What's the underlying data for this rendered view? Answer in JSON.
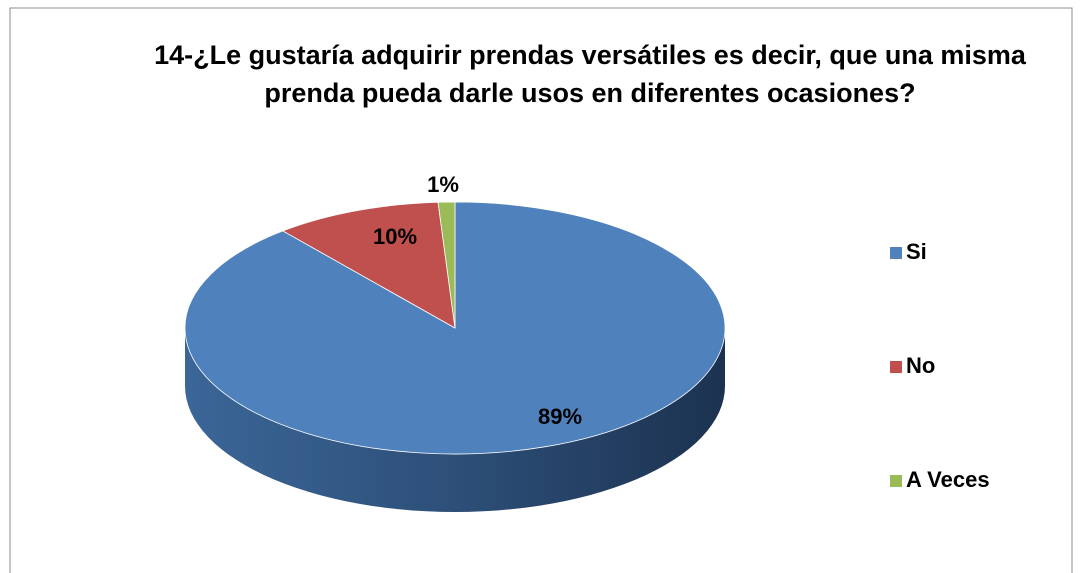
{
  "chart_data": {
    "type": "pie",
    "title": "14-¿Le gustaría adquirir prendas versátiles es decir, que una misma prenda pueda darle usos en diferentes ocasiones?",
    "categories": [
      "Si",
      "No",
      "A Veces"
    ],
    "values": [
      89,
      10,
      1
    ],
    "value_labels": [
      "89%",
      "10%",
      "1%"
    ],
    "colors": [
      "#4f81bd",
      "#c0504d",
      "#9bbb59"
    ],
    "legend": "right"
  }
}
